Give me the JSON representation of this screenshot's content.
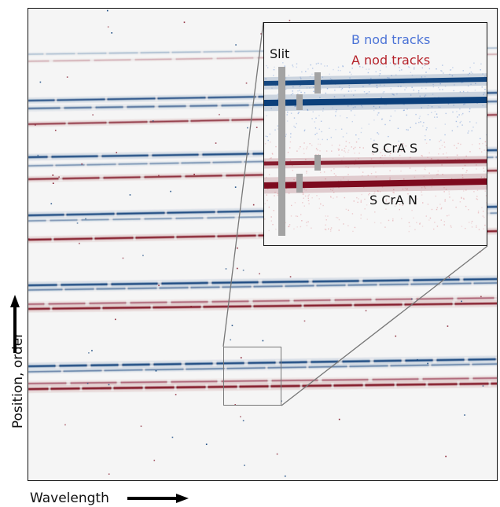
{
  "axes": {
    "x_label": "Wavelength",
    "y_label": "Position, order"
  },
  "inset": {
    "slit_label": "Slit",
    "legend": [
      {
        "label": "B nod tracks",
        "color": "#4a72d6"
      },
      {
        "label": "A nod tracks",
        "color": "#b5222a"
      }
    ],
    "source_labels": [
      "S CrA S",
      "S CrA N"
    ]
  },
  "colors": {
    "b_nod": "#0b3f7a",
    "a_nod": "#7d0a1e",
    "background": "#f5f5f5"
  }
}
